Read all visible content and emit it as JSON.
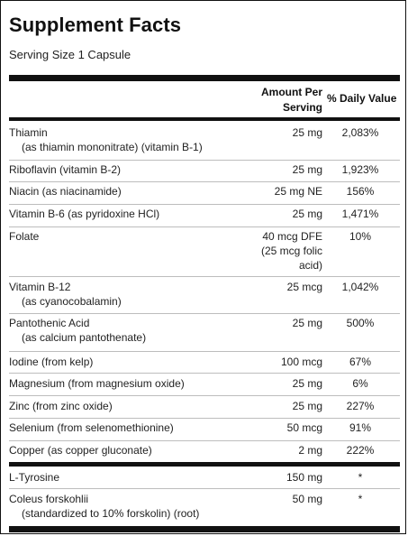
{
  "title": "Supplement Facts",
  "serving_size": "Serving Size 1 Capsule",
  "header": {
    "amount_line1": "Amount Per",
    "amount_line2": "Serving",
    "daily_value": "% Daily Value"
  },
  "nutrients": [
    {
      "name": "Thiamin",
      "sub": "(as thiamin mononitrate) (vitamin B-1)",
      "amount": "25 mg",
      "dv": "2,083%"
    },
    {
      "name": "Riboflavin (vitamin B-2)",
      "amount": "25 mg",
      "dv": "1,923%"
    },
    {
      "name": "Niacin (as niacinamide)",
      "amount": "25 mg NE",
      "dv": "156%"
    },
    {
      "name": "Vitamin B-6 (as pyridoxine HCl)",
      "amount": "25 mg",
      "dv": "1,471%"
    },
    {
      "name": "Folate",
      "amount": "40 mcg DFE",
      "amount2": "(25 mcg folic",
      "amount3": "acid)",
      "dv": "10%"
    },
    {
      "name": "Vitamin B-12",
      "sub": "(as cyanocobalamin)",
      "amount": "25 mcg",
      "dv": "1,042%"
    },
    {
      "name": "Pantothenic Acid",
      "sub": "(as calcium pantothenate)",
      "amount": "25 mg",
      "dv": "500%"
    },
    {
      "name": "Iodine (from kelp)",
      "amount": "100 mcg",
      "dv": "67%"
    },
    {
      "name": "Magnesium (from magnesium oxide)",
      "amount": "25 mg",
      "dv": "6%"
    },
    {
      "name": "Zinc (from zinc oxide)",
      "amount": "25 mg",
      "dv": "227%"
    },
    {
      "name": "Selenium (from selenomethionine)",
      "amount": "50 mcg",
      "dv": "91%"
    },
    {
      "name": "Copper (as copper gluconate)",
      "amount": "2 mg",
      "dv": "222%"
    }
  ],
  "other": [
    {
      "name": "L-Tyrosine",
      "amount": "150 mg",
      "dv": "*"
    },
    {
      "name": "Coleus forskohlii",
      "sub": "(standardized to 10% forskolin) (root)",
      "amount": "50 mg",
      "dv": "*"
    }
  ]
}
